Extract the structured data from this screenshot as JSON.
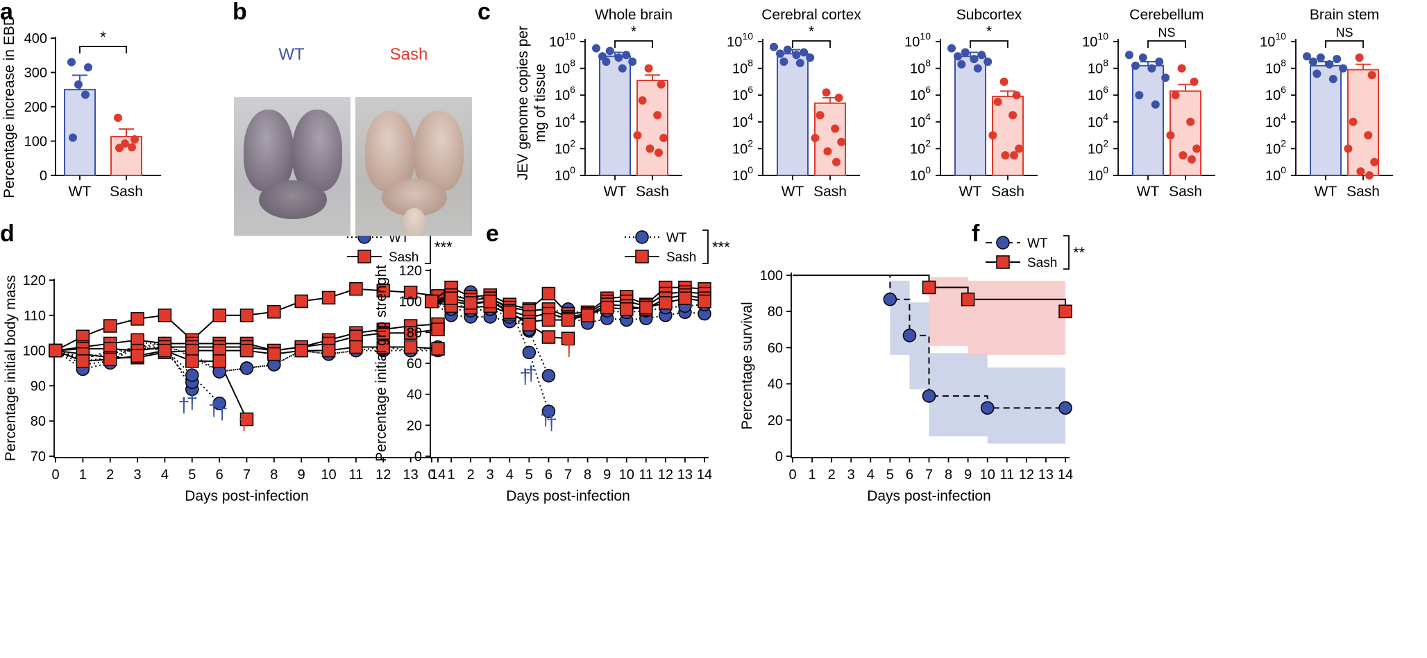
{
  "colors": {
    "wt": "#3b52a8",
    "wt_fill": "#d3d8ee",
    "wt_band": "#c6cce6",
    "sash": "#e03a2c",
    "sash_fill": "#fbd3cf",
    "sash_band": "#f6c6c6",
    "axis": "#000000"
  },
  "panels": {
    "a": {
      "letter": "a"
    },
    "b": {
      "letter": "b",
      "wt_label": "WT",
      "sash_label": "Sash"
    },
    "c": {
      "letter": "c"
    },
    "d": {
      "letter": "d"
    },
    "e": {
      "letter": "e"
    },
    "f": {
      "letter": "f"
    }
  },
  "chart_data": [
    {
      "id": "a",
      "type": "bar",
      "ylabel": "Percentage increase in EBD",
      "categories": [
        "WT",
        "Sash"
      ],
      "ylim": [
        0,
        400
      ],
      "yticks": [
        0,
        100,
        200,
        300,
        400
      ],
      "bar_means": [
        250,
        113
      ],
      "bar_sem": [
        42,
        22
      ],
      "points": [
        [
          330,
          315,
          265,
          235,
          110
        ],
        [
          168,
          105,
          93,
          82,
          80
        ]
      ],
      "significance": "*"
    },
    {
      "id": "c",
      "type": "bar",
      "scale": "log10",
      "ylabel_lines": [
        "JEV genome copies per",
        "mg of tissue"
      ],
      "ylim_exp": [
        0,
        10
      ],
      "ytick_exps": [
        0,
        2,
        4,
        6,
        8,
        10
      ],
      "ytick_base": "10",
      "categories": [
        "WT",
        "Sash"
      ],
      "subplots": [
        {
          "title": "Whole brain",
          "significance": "*",
          "bar_exp": [
            8.9,
            7.1
          ],
          "sem_exp": [
            9.2,
            7.5
          ],
          "points_exp": [
            [
              9.5,
              9.3,
              9.0,
              8.9,
              8.8,
              8.5,
              8.5,
              8.0
            ],
            [
              8.0,
              6.8,
              5.6,
              4.5,
              3.0,
              2.8,
              2.0,
              1.7
            ]
          ]
        },
        {
          "title": "Cerebral cortex",
          "significance": "*",
          "bar_exp": [
            9.1,
            5.4
          ],
          "sem_exp": [
            9.4,
            5.8
          ],
          "points_exp": [
            [
              9.6,
              9.4,
              9.2,
              9.1,
              9.0,
              8.8,
              8.5,
              8.4
            ],
            [
              6.2,
              5.8,
              4.5,
              3.5,
              2.8,
              2.5,
              1.8,
              1.0
            ]
          ]
        },
        {
          "title": "Subcortex",
          "significance": "*",
          "bar_exp": [
            8.9,
            5.9
          ],
          "sem_exp": [
            9.2,
            6.3
          ],
          "points_exp": [
            [
              9.5,
              9.2,
              9.0,
              8.9,
              8.7,
              8.5,
              8.3,
              8.0
            ],
            [
              7.0,
              6.0,
              5.5,
              4.5,
              3.0,
              2.0,
              1.5,
              1.5
            ]
          ]
        },
        {
          "title": "Cerebellum",
          "significance": "NS",
          "bar_exp": [
            8.2,
            6.3
          ],
          "sem_exp": [
            8.5,
            6.8
          ],
          "points_exp": [
            [
              9.0,
              8.8,
              8.5,
              8.2,
              8.0,
              7.3,
              6.0,
              5.3
            ],
            [
              8.0,
              7.0,
              6.0,
              4.0,
              3.0,
              2.0,
              1.5,
              1.2
            ]
          ]
        },
        {
          "title": "Brain stem",
          "significance": "NS",
          "bar_exp": [
            8.2,
            7.9
          ],
          "sem_exp": [
            8.5,
            8.3
          ],
          "points_exp": [
            [
              8.9,
              8.8,
              8.7,
              8.5,
              8.3,
              8.0,
              7.6,
              7.2
            ],
            [
              8.8,
              7.5,
              4.0,
              3.0,
              2.0,
              1.0,
              0.3,
              0.0
            ]
          ]
        }
      ]
    },
    {
      "id": "d",
      "type": "line",
      "ylabel": "Percentage initial body mass",
      "xlabel": "Days post-infection",
      "xlim": [
        0,
        14
      ],
      "xticks": [
        0,
        1,
        2,
        3,
        4,
        5,
        6,
        7,
        8,
        9,
        10,
        11,
        12,
        13,
        14
      ],
      "ylim": [
        70,
        120
      ],
      "yticks": [
        70,
        80,
        90,
        100,
        110,
        120
      ],
      "legend": [
        "WT",
        "Sash"
      ],
      "significance": "***",
      "series": [
        {
          "name": "WT",
          "x": [
            0,
            1,
            2,
            3,
            4,
            5,
            6,
            7,
            8,
            9,
            10,
            11,
            12,
            13,
            14
          ],
          "y": [
            100,
            96,
            97,
            101,
            102,
            98,
            94,
            95,
            96,
            100,
            99,
            100,
            100,
            100,
            101
          ]
        },
        {
          "name": "WT",
          "x": [
            0,
            1,
            2,
            3,
            4,
            5,
            6,
            7,
            8,
            9,
            10,
            11,
            12,
            13,
            14
          ],
          "y": [
            100,
            98,
            99,
            101,
            101,
            99,
            94,
            95,
            96,
            100,
            99,
            100,
            101,
            100,
            100
          ]
        },
        {
          "name": "WT",
          "x": [
            0,
            1,
            2,
            3,
            4,
            5
          ],
          "y": [
            100,
            94.7,
            96.5,
            102.5,
            101.5,
            89
          ]
        },
        {
          "name": "WT",
          "x": [
            0,
            1,
            2,
            3,
            4,
            5
          ],
          "y": [
            100,
            97,
            98,
            101,
            100,
            91
          ]
        },
        {
          "name": "WT",
          "x": [
            0,
            1,
            2,
            3,
            4,
            5,
            6
          ],
          "y": [
            100,
            97.5,
            100,
            100.5,
            100.5,
            93,
            85
          ]
        },
        {
          "name": "Sash",
          "x": [
            0,
            1,
            2,
            3,
            4,
            5,
            6,
            7,
            8,
            9,
            10,
            11,
            12,
            13,
            14
          ],
          "y": [
            100,
            104,
            107,
            109,
            110,
            103,
            110,
            110,
            111,
            114,
            115,
            117.5,
            117,
            116.5,
            115.5
          ]
        },
        {
          "name": "Sash",
          "x": [
            0,
            1,
            2,
            3,
            4,
            5,
            6,
            7,
            8,
            9,
            10,
            11,
            12,
            13,
            14
          ],
          "y": [
            100,
            101,
            102,
            103,
            102,
            102,
            102,
            102,
            100,
            101,
            103,
            105,
            106,
            107,
            107.5
          ]
        },
        {
          "name": "Sash",
          "x": [
            0,
            1,
            2,
            3,
            4,
            5,
            6,
            7,
            8,
            9,
            10,
            11,
            12,
            13,
            14
          ],
          "y": [
            100,
            100.5,
            100.5,
            100,
            101,
            101,
            101,
            101,
            100,
            101,
            102,
            104,
            105,
            105,
            106
          ]
        },
        {
          "name": "Sash",
          "x": [
            0,
            1,
            2,
            3,
            4,
            5,
            6,
            7,
            8,
            9,
            10,
            11,
            12,
            13,
            14
          ],
          "y": [
            100,
            99,
            98,
            98,
            99.5,
            100,
            100,
            100,
            99,
            100,
            100,
            101,
            101,
            101,
            100.5
          ]
        },
        {
          "name": "Sash",
          "x": [
            0,
            1,
            2,
            3,
            4,
            5,
            6,
            7
          ],
          "y": [
            100,
            97,
            97.5,
            98.5,
            100,
            97,
            97,
            80.5
          ]
        }
      ],
      "death_marks": [
        {
          "x": 4.7,
          "y": 82.5,
          "group": "WT"
        },
        {
          "x": 5.0,
          "y": 83.5,
          "group": "WT"
        },
        {
          "x": 5.8,
          "y": 81.5,
          "group": "WT"
        },
        {
          "x": 6.1,
          "y": 80.5,
          "group": "WT"
        },
        {
          "x": 6.9,
          "y": 77.5,
          "group": "Sash"
        }
      ]
    },
    {
      "id": "e",
      "type": "line",
      "ylabel": "Percentage initial grip strenght",
      "xlabel": "Days post-infection",
      "xlim": [
        0,
        14
      ],
      "xticks": [
        0,
        1,
        2,
        3,
        4,
        5,
        6,
        7,
        8,
        9,
        10,
        11,
        12,
        13,
        14
      ],
      "ylim": [
        0,
        120
      ],
      "yticks": [
        0,
        20,
        40,
        60,
        80,
        100,
        120
      ],
      "legend": [
        "WT",
        "Sash"
      ],
      "significance": "***",
      "series": [
        {
          "name": "WT",
          "x": [
            0,
            1,
            2,
            3,
            4,
            5,
            6,
            7,
            8,
            9,
            10,
            11,
            12,
            13,
            14
          ],
          "y": [
            100,
            91,
            90,
            90,
            87,
            85,
            90,
            90,
            86,
            89,
            88,
            89,
            91,
            93,
            92
          ]
        },
        {
          "name": "WT",
          "x": [
            0,
            1,
            2,
            3,
            4,
            5,
            6,
            7,
            8,
            9,
            10,
            11,
            12,
            13,
            14
          ],
          "y": [
            100,
            95,
            94,
            95,
            90,
            89,
            93,
            95,
            91,
            94,
            93,
            94,
            96,
            97,
            98
          ]
        },
        {
          "name": "WT",
          "x": [
            0,
            1,
            2,
            3,
            4,
            5,
            6
          ],
          "y": [
            100,
            98,
            96,
            97,
            93,
            81,
            52
          ]
        },
        {
          "name": "WT",
          "x": [
            0,
            1,
            2,
            3,
            4,
            5,
            6
          ],
          "y": [
            100,
            100,
            106,
            100,
            96,
            67,
            29
          ]
        },
        {
          "name": "WT",
          "x": [
            0,
            1,
            2,
            3,
            4,
            5
          ],
          "y": [
            100,
            102,
            103,
            102,
            95,
            82
          ]
        },
        {
          "name": "Sash",
          "x": [
            0,
            1,
            2,
            3,
            4,
            5,
            6,
            7,
            8,
            9,
            10,
            11,
            12,
            13,
            14
          ],
          "y": [
            100,
            109,
            103,
            104,
            98,
            95,
            105,
            92,
            93,
            102,
            103,
            98,
            109,
            109,
            108
          ]
        },
        {
          "name": "Sash",
          "x": [
            0,
            1,
            2,
            3,
            4,
            5,
            6,
            7,
            8,
            9,
            10,
            11,
            12,
            13,
            14
          ],
          "y": [
            100,
            104,
            101,
            102,
            96,
            94,
            95,
            90,
            92,
            100,
            100,
            97,
            105,
            106,
            105
          ]
        },
        {
          "name": "Sash",
          "x": [
            0,
            1,
            2,
            3,
            4,
            5,
            6,
            7,
            8,
            9,
            10,
            11,
            12,
            13,
            14
          ],
          "y": [
            100,
            100,
            98,
            100,
            94,
            90,
            92,
            89,
            91,
            98,
            97,
            95,
            102,
            104,
            102
          ]
        },
        {
          "name": "Sash",
          "x": [
            0,
            1,
            2,
            3,
            4,
            5,
            6,
            7,
            8,
            9,
            10,
            11,
            12,
            13,
            14
          ],
          "y": [
            100,
            97,
            96,
            97,
            92,
            87,
            88,
            88,
            91,
            96,
            95,
            96,
            99,
            102,
            100
          ]
        },
        {
          "name": "Sash",
          "x": [
            0,
            1,
            2,
            3,
            4,
            5,
            6,
            7
          ],
          "y": [
            100,
            102,
            99,
            100,
            93,
            85,
            77,
            76
          ]
        }
      ],
      "death_marks": [
        {
          "x": 4.8,
          "y": 47,
          "group": "WT"
        },
        {
          "x": 5.1,
          "y": 49,
          "group": "WT"
        },
        {
          "x": 5.85,
          "y": 20,
          "group": "WT"
        },
        {
          "x": 6.15,
          "y": 17,
          "group": "WT"
        },
        {
          "x": 7.05,
          "y": 65,
          "group": "Sash"
        }
      ]
    },
    {
      "id": "f",
      "type": "line",
      "ylabel": "Percentage survival",
      "xlabel": "Days post-infection",
      "xlim": [
        0,
        14
      ],
      "xticks": [
        0,
        1,
        2,
        3,
        4,
        5,
        6,
        7,
        8,
        9,
        10,
        11,
        12,
        13,
        14
      ],
      "ylim": [
        0,
        100
      ],
      "yticks": [
        0,
        20,
        40,
        60,
        80,
        100
      ],
      "legend": [
        "WT",
        "Sash"
      ],
      "significance": "**",
      "series": [
        {
          "name": "WT",
          "x": [
            0,
            5,
            6,
            7,
            10,
            14
          ],
          "y": [
            100,
            86.7,
            66.7,
            33.3,
            26.7,
            26.7
          ],
          "markers_x": [
            5,
            6,
            7,
            10,
            14
          ]
        },
        {
          "name": "Sash",
          "x": [
            0,
            7,
            9,
            14
          ],
          "y": [
            100,
            93.3,
            86.7,
            80
          ],
          "markers_x": [
            7,
            9,
            14
          ]
        }
      ],
      "ci_bands": [
        {
          "name": "WT",
          "steps": [
            [
              5,
              6,
              56,
              97
            ],
            [
              6,
              7,
              37,
              85
            ],
            [
              7,
              10,
              11,
              57
            ],
            [
              10,
              14,
              7,
              49
            ]
          ]
        },
        {
          "name": "Sash",
          "steps": [
            [
              7,
              9,
              61,
              99
            ],
            [
              9,
              14,
              56,
              97
            ]
          ]
        }
      ]
    }
  ]
}
